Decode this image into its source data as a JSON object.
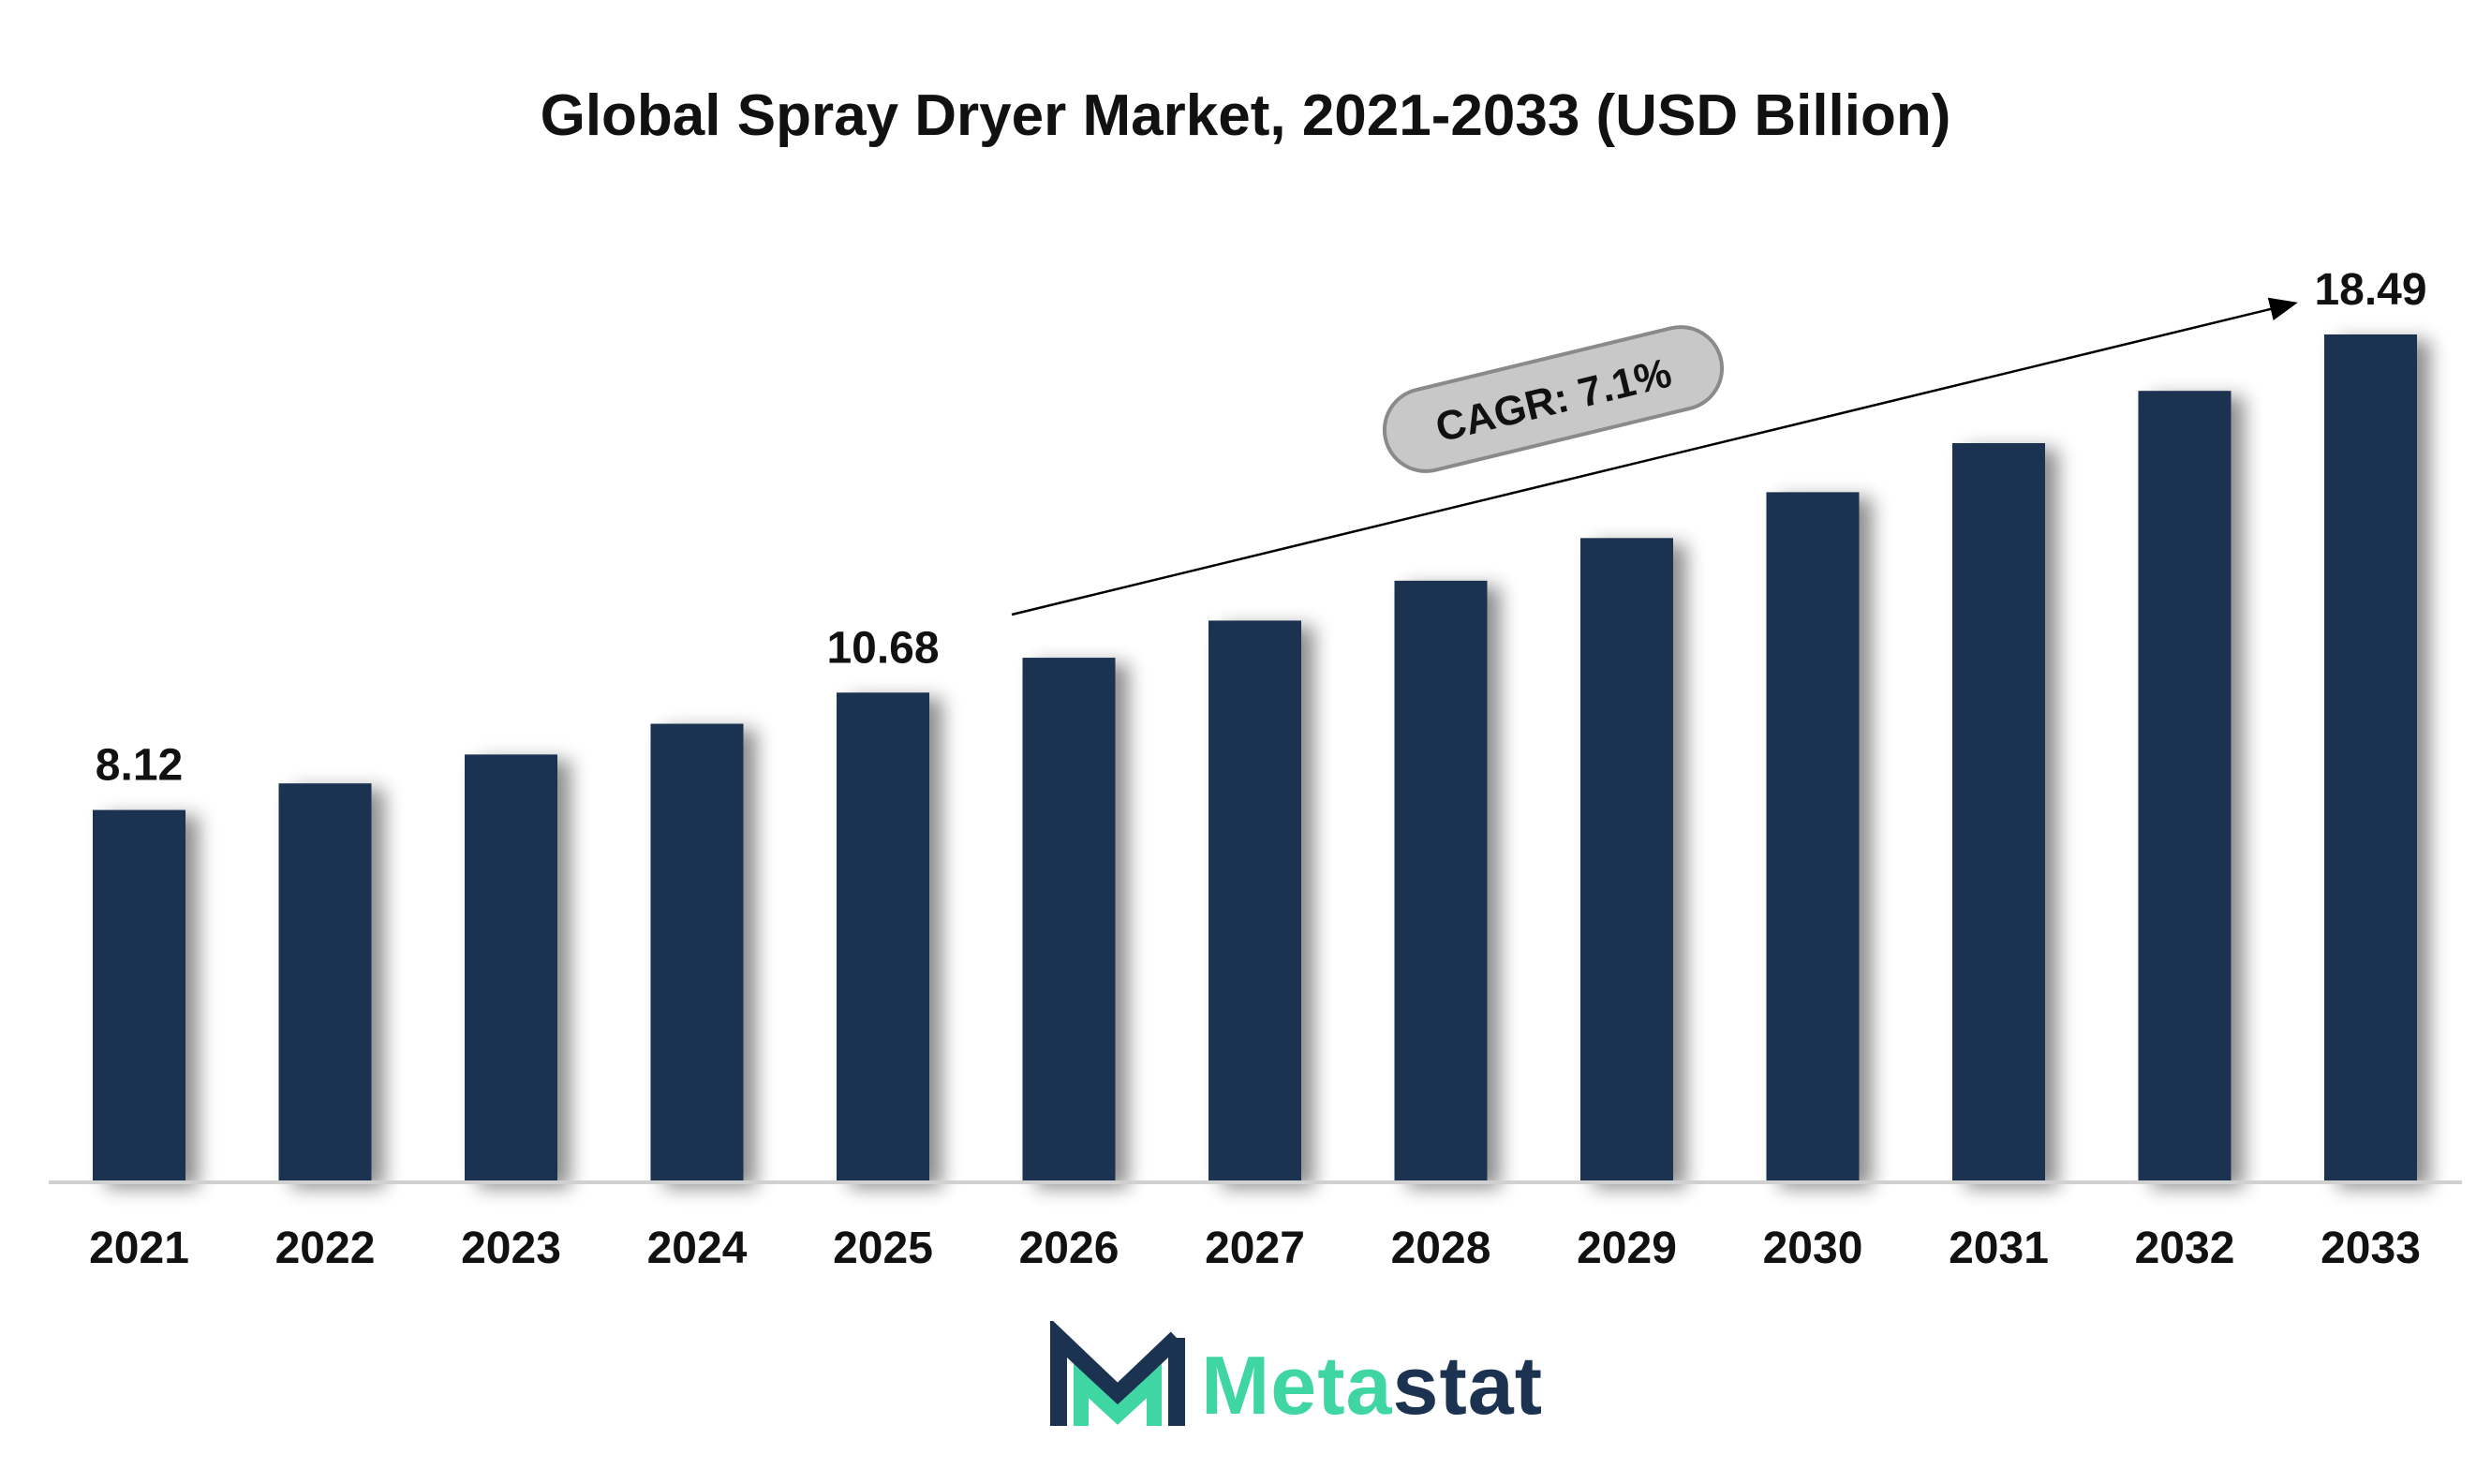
{
  "chart_data": {
    "type": "bar",
    "title": "Global Spray Dryer Market, 2021-2033 (USD Billion)",
    "categories": [
      "2021",
      "2022",
      "2023",
      "2024",
      "2025",
      "2026",
      "2027",
      "2028",
      "2029",
      "2030",
      "2031",
      "2032",
      "2033"
    ],
    "values": [
      8.12,
      8.7,
      9.33,
      10.0,
      10.68,
      11.44,
      12.25,
      13.12,
      14.05,
      15.05,
      16.12,
      17.26,
      18.49
    ],
    "data_labels": [
      {
        "index": 0,
        "text": "8.12"
      },
      {
        "index": 4,
        "text": "10.68"
      },
      {
        "index": 12,
        "text": "18.49"
      }
    ],
    "annotation": "CAGR: 7.1%",
    "ylim": [
      0,
      20
    ],
    "xlabel": "",
    "ylabel": "",
    "grid": false,
    "bar_color": "#1b3351"
  },
  "logo": {
    "brand_part1": "Meta",
    "brand_part2": "stat",
    "colors": {
      "accent": "#3fd6a3",
      "dark": "#1b3351"
    }
  }
}
